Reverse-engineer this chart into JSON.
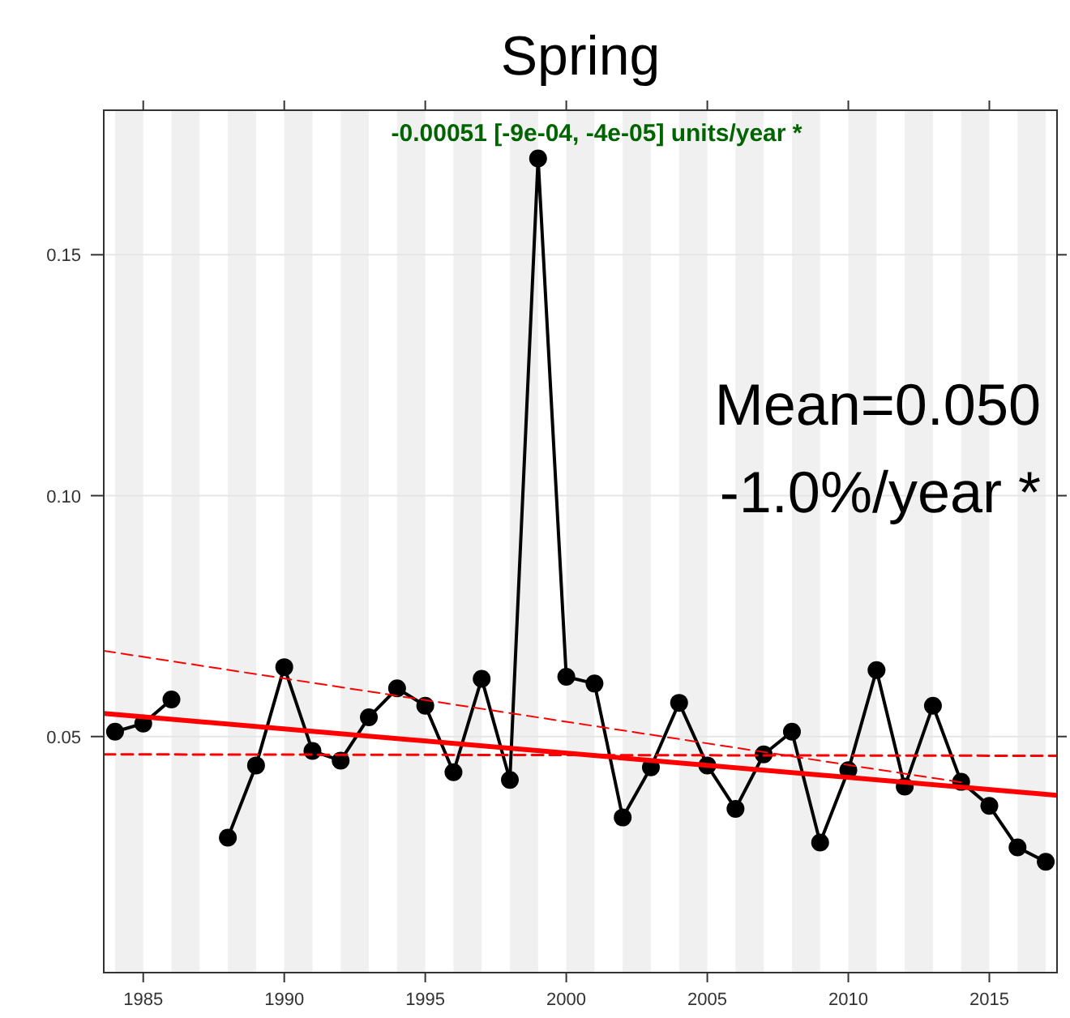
{
  "chart_data": {
    "type": "line",
    "title": "Spring",
    "x": [
      1984,
      1985,
      1986,
      1987,
      1988,
      1989,
      1990,
      1991,
      1992,
      1993,
      1994,
      1995,
      1996,
      1997,
      1998,
      1999,
      2000,
      2001,
      2002,
      2003,
      2004,
      2005,
      2006,
      2007,
      2008,
      2009,
      2010,
      2011,
      2012,
      2013,
      2014,
      2015,
      2016,
      2017
    ],
    "series": [
      {
        "color": "#000000",
        "marker": "circle",
        "line_style": "solid",
        "values": [
          0.051,
          0.0527,
          0.0577,
          null,
          0.029,
          0.044,
          0.0644,
          0.047,
          0.045,
          0.054,
          0.06,
          0.0564,
          0.0426,
          0.062,
          0.041,
          0.17,
          0.0624,
          0.061,
          0.0332,
          0.0436,
          0.057,
          0.044,
          0.035,
          0.0463,
          0.051,
          0.028,
          0.043,
          0.0638,
          0.0396,
          0.0564,
          0.0406,
          0.0356,
          0.027,
          0.024
        ]
      },
      {
        "type": "line",
        "color": "#ff0000",
        "marker": "none",
        "line_style": "solid",
        "x": [
          1983.6,
          2017.4
        ],
        "values": [
          0.0548,
          0.0378
        ]
      },
      {
        "type": "line",
        "color": "#ff0000",
        "marker": "none",
        "line_style": "dashed",
        "x": [
          1983.6,
          2014
        ],
        "values": [
          0.0678,
          0.0405
        ]
      },
      {
        "type": "line",
        "color": "#ff0000",
        "marker": "none",
        "line_style": "dashed",
        "x": [
          1983.6,
          2017.4
        ],
        "values": [
          0.0463,
          0.046
        ]
      }
    ],
    "xlim": [
      1983.6,
      2017.4
    ],
    "xticks": [
      1985,
      1990,
      1995,
      2000,
      2005,
      2010,
      2015
    ],
    "ylim": [
      0.001,
      0.18
    ],
    "yticks": [
      {
        "value": 0.05,
        "label": "0.05"
      },
      {
        "value": 0.1,
        "label": "0.10"
      },
      {
        "value": 0.15,
        "label": "0.15"
      }
    ],
    "grid": "y",
    "bands": [
      {
        "axis": "x",
        "from": 1984,
        "to": 1985,
        "color": "#f0f0f0"
      },
      {
        "axis": "x",
        "from": 1986,
        "to": 1987,
        "color": "#f0f0f0"
      },
      {
        "axis": "x",
        "from": 1988,
        "to": 1989,
        "color": "#f0f0f0"
      },
      {
        "axis": "x",
        "from": 1990,
        "to": 1991,
        "color": "#f0f0f0"
      },
      {
        "axis": "x",
        "from": 1992,
        "to": 1993,
        "color": "#f0f0f0"
      },
      {
        "axis": "x",
        "from": 1994,
        "to": 1995,
        "color": "#f0f0f0"
      },
      {
        "axis": "x",
        "from": 1996,
        "to": 1997,
        "color": "#f0f0f0"
      },
      {
        "axis": "x",
        "from": 1998,
        "to": 1999,
        "color": "#f0f0f0"
      },
      {
        "axis": "x",
        "from": 2000,
        "to": 2001,
        "color": "#f0f0f0"
      },
      {
        "axis": "x",
        "from": 2002,
        "to": 2003,
        "color": "#f0f0f0"
      },
      {
        "axis": "x",
        "from": 2004,
        "to": 2005,
        "color": "#f0f0f0"
      },
      {
        "axis": "x",
        "from": 2006,
        "to": 2007,
        "color": "#f0f0f0"
      },
      {
        "axis": "x",
        "from": 2008,
        "to": 2009,
        "color": "#f0f0f0"
      },
      {
        "axis": "x",
        "from": 2010,
        "to": 2011,
        "color": "#f0f0f0"
      },
      {
        "axis": "x",
        "from": 2012,
        "to": 2013,
        "color": "#f0f0f0"
      },
      {
        "axis": "x",
        "from": 2014,
        "to": 2015,
        "color": "#f0f0f0"
      },
      {
        "axis": "x",
        "from": 2016,
        "to": 2017,
        "color": "#f0f0f0"
      }
    ],
    "annotations": [
      "-0.00051 [-9e-04, -4e-05] units/year *",
      "Mean=0.050",
      "-1.0%/year *"
    ]
  }
}
